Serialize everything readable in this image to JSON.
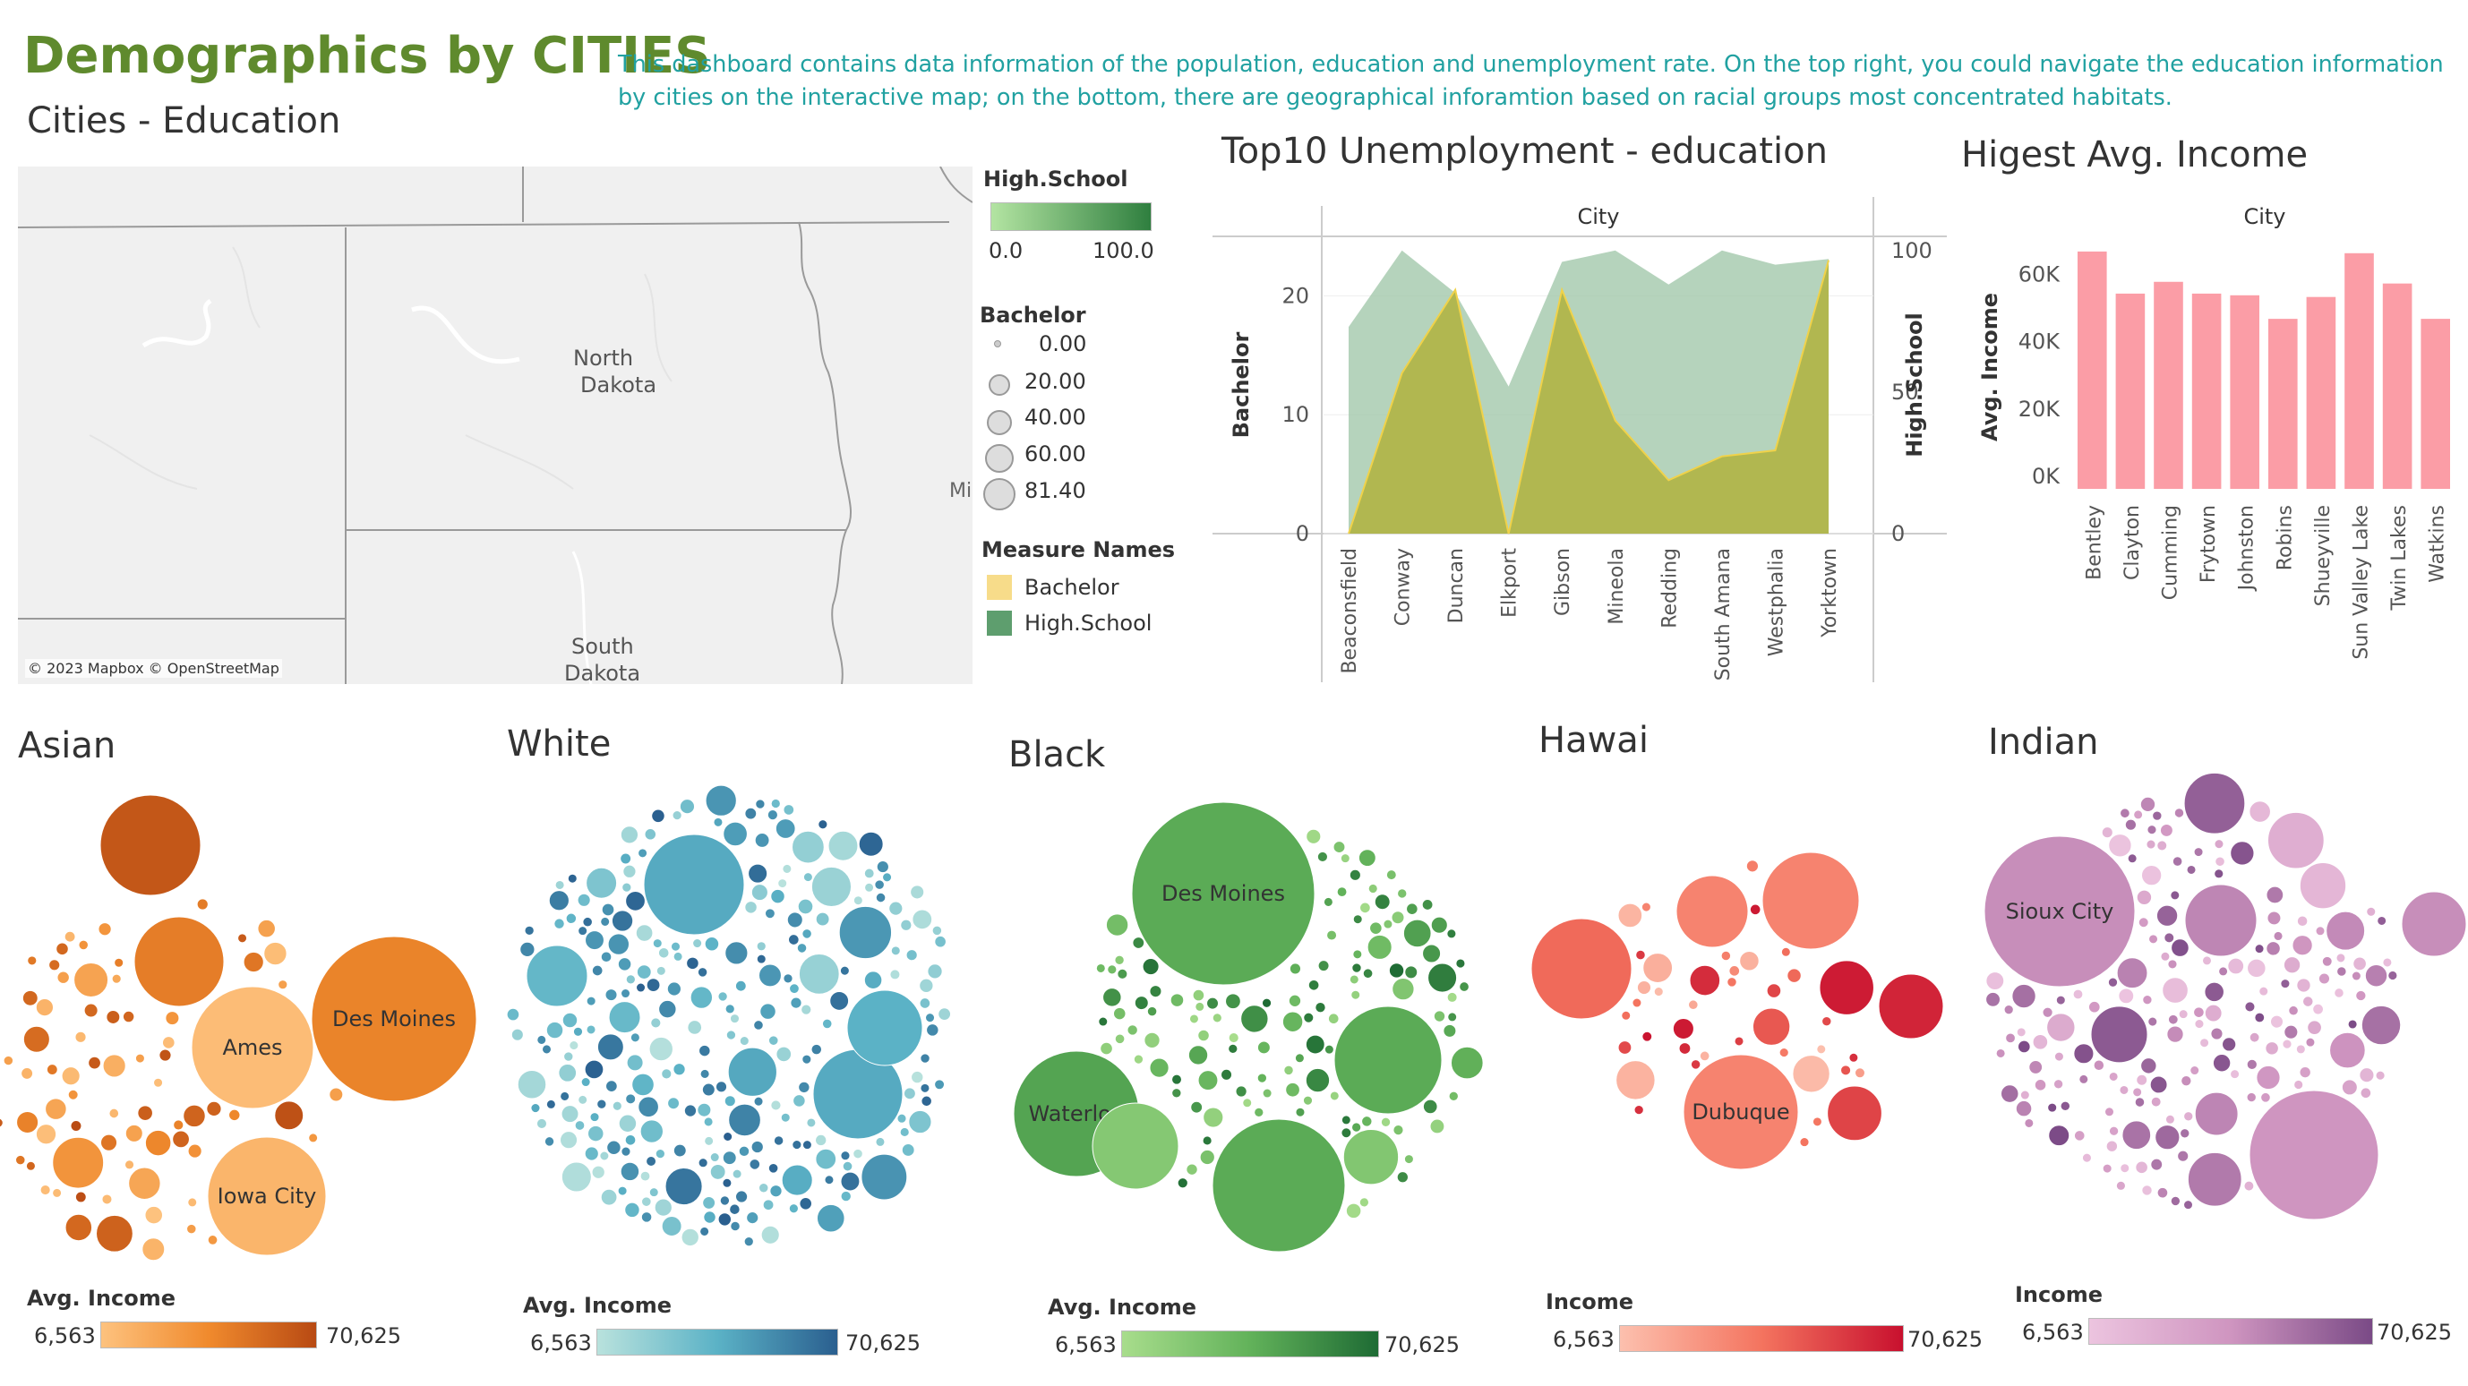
{
  "header": {
    "title": "Demographics by CITIES",
    "description": "This dashboard contains data information of the population, education and unemployment rate. On the top right, you could navigate the education information by cities on the interactive map; on the bottom, there are geographical inforamtion based on racial groups most concentrated habitats.",
    "subtitle": "Cities - Education"
  },
  "map": {
    "labels": {
      "nd_1": "North",
      "nd_2": "Dakota",
      "sd_1": "South",
      "sd_2": "Dakota",
      "mi": "Mi"
    },
    "attribution": "© 2023 Mapbox © OpenStreetMap",
    "legend": {
      "high_school_title": "High.School",
      "high_school_min": "0.0",
      "high_school_max": "100.0",
      "bachelor_title": "Bachelor",
      "bachelor_sizes": [
        "0.00",
        "20.00",
        "40.00",
        "60.00",
        "81.40"
      ],
      "measure_title": "Measure Names",
      "measures": [
        {
          "name": "Bachelor",
          "color": "#f7dc8a"
        },
        {
          "name": "High.School",
          "color": "#5e9e6e"
        }
      ]
    }
  },
  "chart_data": [
    {
      "type": "area",
      "title": "Top10 Unemployment - education",
      "header": "City",
      "ylabel_left": "Bachelor",
      "ylabel_right": "High.School",
      "categories": [
        "Beaconsfield",
        "Conway",
        "Duncan",
        "Elkport",
        "Gibson",
        "Mineola",
        "Redding",
        "South Amana",
        "Westphalia",
        "Yorktown"
      ],
      "left_ticks": [
        "0",
        "10",
        "20"
      ],
      "right_ticks": [
        "0",
        "50",
        "100"
      ],
      "ylim_left": [
        0,
        25
      ],
      "ylim_right": [
        0,
        105
      ],
      "series": [
        {
          "name": "High.School",
          "axis": "right",
          "color": "#9cc4a6",
          "values": [
            73,
            100,
            85,
            52,
            96,
            100,
            88,
            100,
            95,
            97
          ]
        },
        {
          "name": "Bachelor",
          "axis": "left",
          "color": "#b1b54a",
          "values": [
            0,
            13.5,
            20.5,
            0,
            20.5,
            9.5,
            4.5,
            6.5,
            7,
            23
          ]
        }
      ]
    },
    {
      "type": "bar",
      "title": "Higest Avg. Income",
      "header": "City",
      "ylabel": "Avg. Income",
      "categories": [
        "Bentley",
        "Clayton",
        "Cumming",
        "Frytown",
        "Johnston",
        "Robins",
        "Shueyville",
        "Sun Valley Lake",
        "Twin Lakes",
        "Watkins"
      ],
      "values": [
        70500,
        58000,
        61500,
        58000,
        57500,
        50500,
        57000,
        70000,
        61000,
        50500
      ],
      "ticks": [
        "0K",
        "20K",
        "40K",
        "60K"
      ],
      "ylim": [
        0,
        75000
      ],
      "color": "#fb9da6"
    },
    {
      "type": "bubble",
      "title": "Asian",
      "legend_title": "Avg. Income",
      "legend_min": "6,563",
      "legend_max": "70,625",
      "labels": [
        "Des Moines",
        "Ames",
        "Iowa City"
      ],
      "colors": [
        "#fdc27e",
        "#f08a2d",
        "#b84a13"
      ]
    },
    {
      "type": "bubble",
      "title": "White",
      "legend_title": "Avg. Income",
      "legend_min": "6,563",
      "legend_max": "70,625",
      "labels": [],
      "colors": [
        "#b9e2dd",
        "#5bb2c6",
        "#2a5f8f"
      ]
    },
    {
      "type": "bubble",
      "title": "Black",
      "legend_title": "Avg. Income",
      "legend_min": "6,563",
      "legend_max": "70,625",
      "labels": [
        "Des Moines",
        "Waterloo"
      ],
      "colors": [
        "#a8dd8c",
        "#62b25a",
        "#1e6b34"
      ]
    },
    {
      "type": "bubble",
      "title": "Hawai",
      "legend_title": "Income",
      "legend_min": "6,563",
      "legend_max": "70,625",
      "labels": [
        "Dubuque"
      ],
      "colors": [
        "#fcc0ae",
        "#f4745f",
        "#c8102e"
      ]
    },
    {
      "type": "bubble",
      "title": "Indian",
      "legend_title": "Income",
      "legend_min": "6,563",
      "legend_max": "70,625",
      "labels": [
        "Sioux City"
      ],
      "colors": [
        "#ecc4df",
        "#cf95c0",
        "#7a4a86"
      ]
    }
  ]
}
